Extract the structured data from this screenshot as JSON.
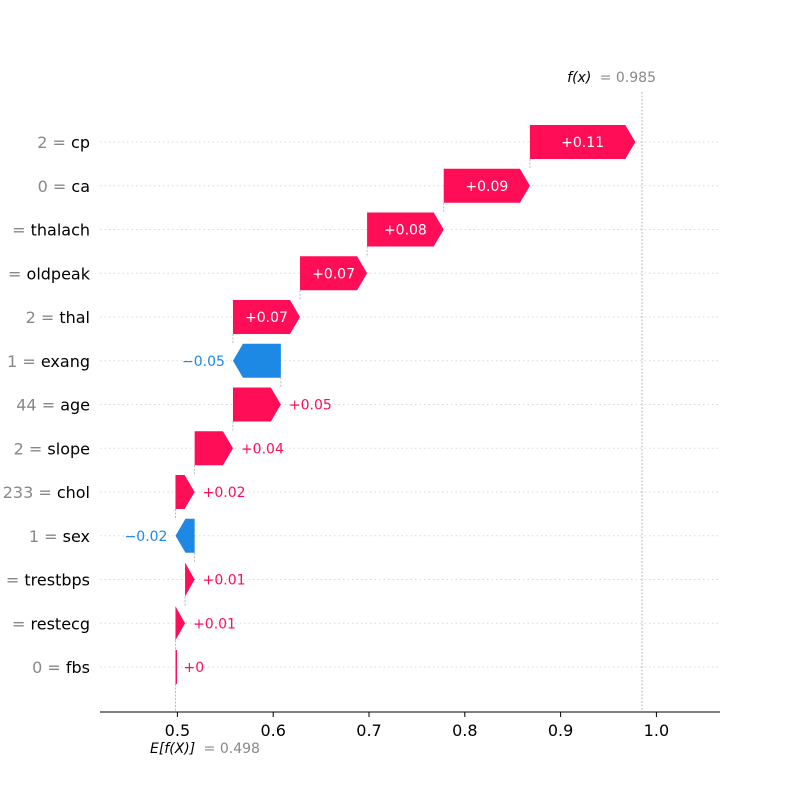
{
  "chart_data": {
    "type": "waterfall",
    "base_value_label": "E[f(X)]",
    "base_value": 0.498,
    "base_value_text": "= 0.498",
    "output_value_label": "f(x)",
    "output_value": 0.985,
    "output_value_text": "= 0.985",
    "features": [
      {
        "value_text": "2 =",
        "name": "cp",
        "contribution": 0.11,
        "label": "+0.11"
      },
      {
        "value_text": "0 =",
        "name": "ca",
        "contribution": 0.09,
        "label": "+0.09"
      },
      {
        "value_text": "=",
        "name": "thalach",
        "contribution": 0.08,
        "label": "+0.08"
      },
      {
        "value_text": "=",
        "name": "oldpeak",
        "contribution": 0.07,
        "label": "+0.07"
      },
      {
        "value_text": "2 =",
        "name": "thal",
        "contribution": 0.07,
        "label": "+0.07"
      },
      {
        "value_text": "1 =",
        "name": "exang",
        "contribution": -0.05,
        "label": "−0.05"
      },
      {
        "value_text": "44 =",
        "name": "age",
        "contribution": 0.05,
        "label": "+0.05"
      },
      {
        "value_text": "2 =",
        "name": "slope",
        "contribution": 0.04,
        "label": "+0.04"
      },
      {
        "value_text": "233 =",
        "name": "chol",
        "contribution": 0.02,
        "label": "+0.02"
      },
      {
        "value_text": "1 =",
        "name": "sex",
        "contribution": -0.02,
        "label": "−0.02"
      },
      {
        "value_text": "=",
        "name": "trestbps",
        "contribution": 0.01,
        "label": "+0.01"
      },
      {
        "value_text": "=",
        "name": "restecg",
        "contribution": 0.01,
        "label": "+0.01"
      },
      {
        "value_text": "0 =",
        "name": "fbs",
        "contribution": 0.0,
        "label": "+0"
      }
    ],
    "x_ticks": [
      "0.5",
      "0.6",
      "0.7",
      "0.8",
      "0.9",
      "1.0"
    ],
    "x_tick_values": [
      0.5,
      0.6,
      0.7,
      0.8,
      0.9,
      1.0
    ],
    "xlim": [
      0.42,
      1.07
    ],
    "colors": {
      "positive": "#ff0d57",
      "negative": "#1e88e5"
    }
  }
}
